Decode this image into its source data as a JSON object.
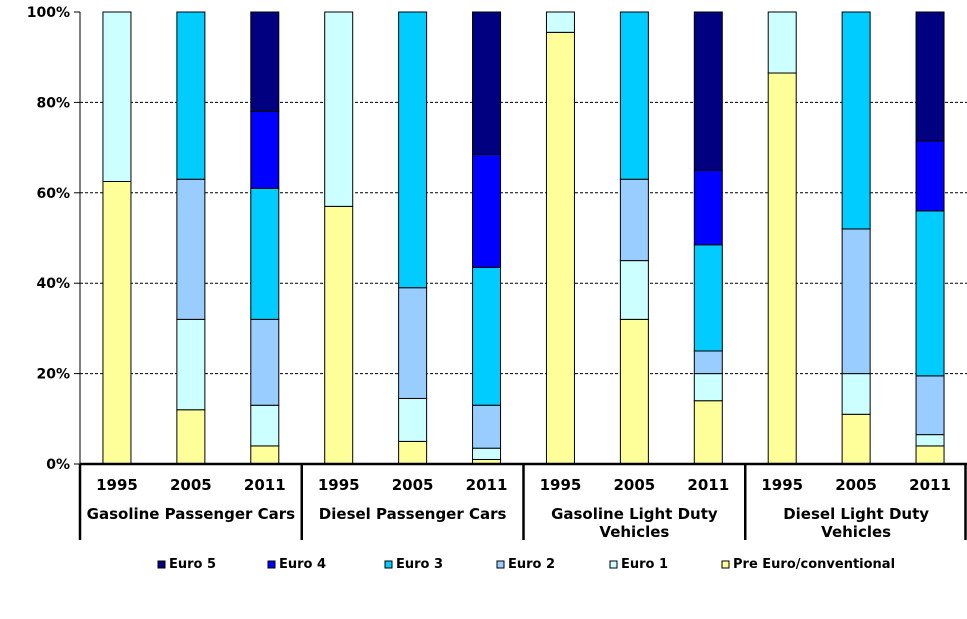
{
  "chart_data": {
    "type": "bar",
    "stacked": true,
    "normalized": true,
    "ylim": [
      0,
      100
    ],
    "yticks": [
      0,
      20,
      40,
      60,
      80,
      100
    ],
    "ytick_labels": [
      "0%",
      "20%",
      "40%",
      "60%",
      "80%",
      "100%"
    ],
    "grid": "horizontal dashed",
    "legend_position": "bottom",
    "groups": [
      {
        "label": "Gasoline Passenger Cars",
        "years": [
          "1995",
          "2005",
          "2011"
        ]
      },
      {
        "label": "Diesel Passenger Cars",
        "years": [
          "1995",
          "2005",
          "2011"
        ]
      },
      {
        "label": "Gasoline Light Duty Vehicles",
        "years": [
          "1995",
          "2005",
          "2011"
        ]
      },
      {
        "label": "Diesel Light Duty Vehicles",
        "years": [
          "1995",
          "2005",
          "2011"
        ]
      }
    ],
    "series": [
      {
        "name": "Pre Euro/conventional",
        "color": "#ffff99",
        "values": [
          62.5,
          12,
          4,
          57,
          5,
          1,
          95.5,
          32,
          14,
          86.5,
          11,
          4
        ]
      },
      {
        "name": "Euro 1",
        "color": "#ccffff",
        "values": [
          37.5,
          20,
          9,
          43,
          9.5,
          2.5,
          4.5,
          13,
          6,
          13.5,
          9,
          2.5
        ]
      },
      {
        "name": "Euro 2",
        "color": "#99ccff",
        "values": [
          0,
          31,
          19,
          0,
          24.5,
          9.5,
          0,
          18,
          5,
          0,
          32,
          13
        ]
      },
      {
        "name": "Euro 3",
        "color": "#00ccff",
        "values": [
          0,
          37,
          29,
          0,
          61,
          30.5,
          0,
          37,
          23.5,
          0,
          48,
          36.5
        ]
      },
      {
        "name": "Euro 4",
        "color": "#0000ff",
        "values": [
          0,
          0,
          17,
          0,
          0,
          25,
          0,
          0,
          16.5,
          0,
          0,
          15.5
        ]
      },
      {
        "name": "Euro 5",
        "color": "#000080",
        "values": [
          0,
          0,
          22,
          0,
          0,
          31.5,
          0,
          0,
          35,
          0,
          0,
          28.5
        ]
      }
    ],
    "legend_order": [
      "Euro 5",
      "Euro 4",
      "Euro 3",
      "Euro 2",
      "Euro 1",
      "Pre Euro/conventional"
    ]
  }
}
